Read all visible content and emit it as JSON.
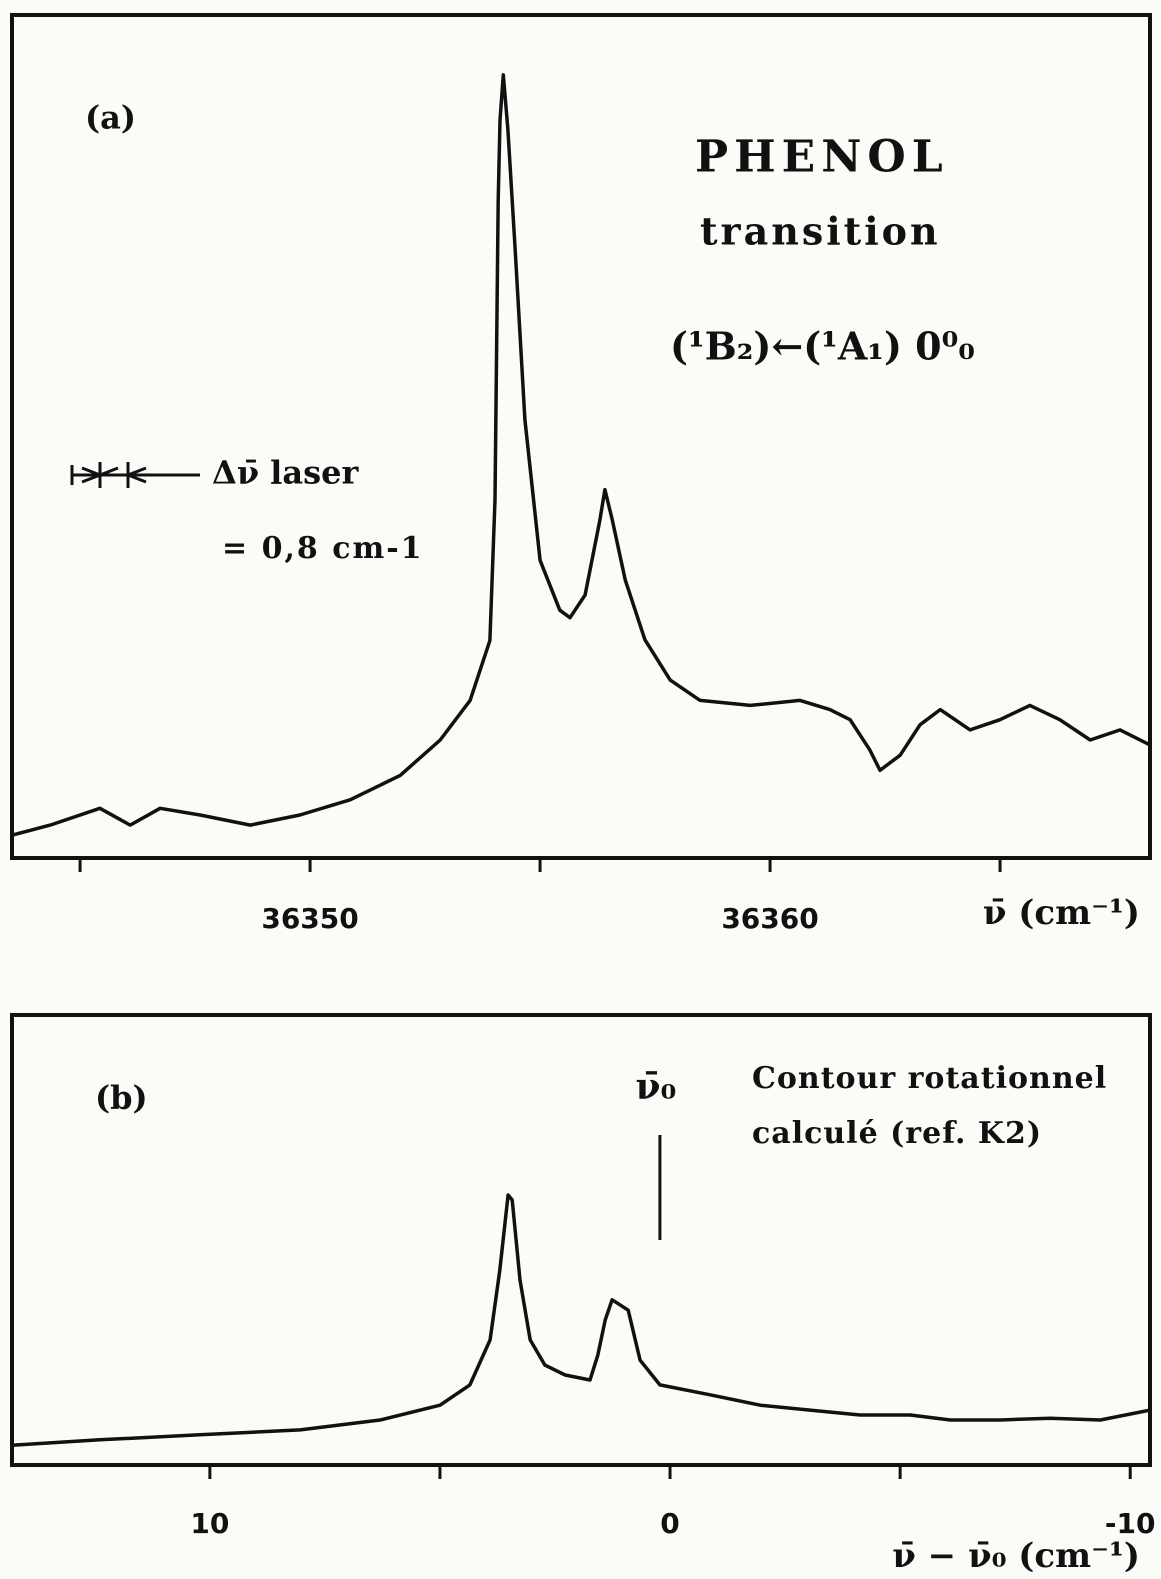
{
  "chart_data": [
    {
      "type": "line",
      "panel": "(a)",
      "annotations": [
        "PHENOL",
        "transition",
        "(¹B₂)←(¹A₁) 0⁰₀",
        "Δν̄ laser",
        "= 0,8 cm-1"
      ],
      "xlabel": "ν̄ (cm⁻¹)",
      "xlim": [
        36343.52,
        36368.26
      ],
      "ylim": [
        0,
        100
      ],
      "xticks": [
        36350,
        36360
      ],
      "xminor": [
        36345,
        36355,
        36365
      ],
      "color": "#111111",
      "x": [
        36343.52,
        36344.35,
        36345.43,
        36346.09,
        36346.74,
        36347.61,
        36348.7,
        36349.78,
        36350.87,
        36351.96,
        36352.83,
        36353.48,
        36353.91,
        36354.02,
        36354.09,
        36354.13,
        36354.2,
        36354.3,
        36354.46,
        36354.67,
        36355.0,
        36355.43,
        36355.65,
        36355.98,
        36356.3,
        36356.41,
        36356.57,
        36356.85,
        36357.28,
        36357.83,
        36358.48,
        36359.57,
        36360.65,
        36361.3,
        36361.74,
        36362.17,
        36362.39,
        36362.83,
        36363.26,
        36363.7,
        36364.35,
        36365.0,
        36365.65,
        36366.3,
        36366.96,
        36367.61,
        36368.26
      ],
      "values": [
        2.7,
        3.9,
        5.9,
        3.9,
        5.9,
        5.1,
        3.9,
        5.1,
        6.9,
        9.8,
        14.0,
        18.7,
        25.8,
        42.5,
        78.1,
        87.5,
        92.9,
        86.4,
        72.1,
        52.0,
        35.3,
        29.4,
        28.5,
        31.2,
        40.1,
        43.7,
        40.1,
        33.0,
        25.9,
        21.1,
        18.7,
        18.1,
        18.7,
        17.6,
        16.4,
        12.8,
        10.4,
        12.2,
        15.8,
        17.6,
        15.2,
        16.4,
        18.1,
        16.4,
        14.0,
        15.2,
        13.4
      ]
    },
    {
      "type": "line",
      "panel": "(b)",
      "annotations": [
        "Contour rotationnel",
        "calculé (ref. K2)"
      ],
      "marker": {
        "label": "ν̄₀",
        "x": 0.22
      },
      "xlabel": "ν̄ − ν̄₀ (cm⁻¹)",
      "xlim": [
        14.3,
        -10.43
      ],
      "ylim": [
        0,
        100
      ],
      "xticks": [
        10,
        0,
        -10
      ],
      "xminor": [
        5,
        -5
      ],
      "color": "#111111",
      "x": [
        14.3,
        12.39,
        10.22,
        8.04,
        6.3,
        5.0,
        4.35,
        3.91,
        3.7,
        3.52,
        3.43,
        3.26,
        3.04,
        2.72,
        2.28,
        1.74,
        1.57,
        1.41,
        1.26,
        1.09,
        0.91,
        0.65,
        0.22,
        -0.87,
        -1.96,
        -3.04,
        -4.13,
        -5.22,
        -6.09,
        -7.17,
        -8.26,
        -9.35,
        -10.43
      ],
      "values": [
        4.4,
        5.6,
        6.7,
        7.8,
        10.0,
        13.3,
        17.8,
        27.8,
        43.3,
        60.0,
        58.9,
        41.1,
        27.8,
        22.2,
        20.0,
        18.9,
        24.4,
        32.2,
        36.7,
        35.6,
        34.4,
        23.3,
        17.8,
        15.6,
        13.3,
        12.2,
        11.1,
        11.1,
        10.0,
        10.0,
        10.4,
        10.0,
        12.2
      ]
    }
  ]
}
